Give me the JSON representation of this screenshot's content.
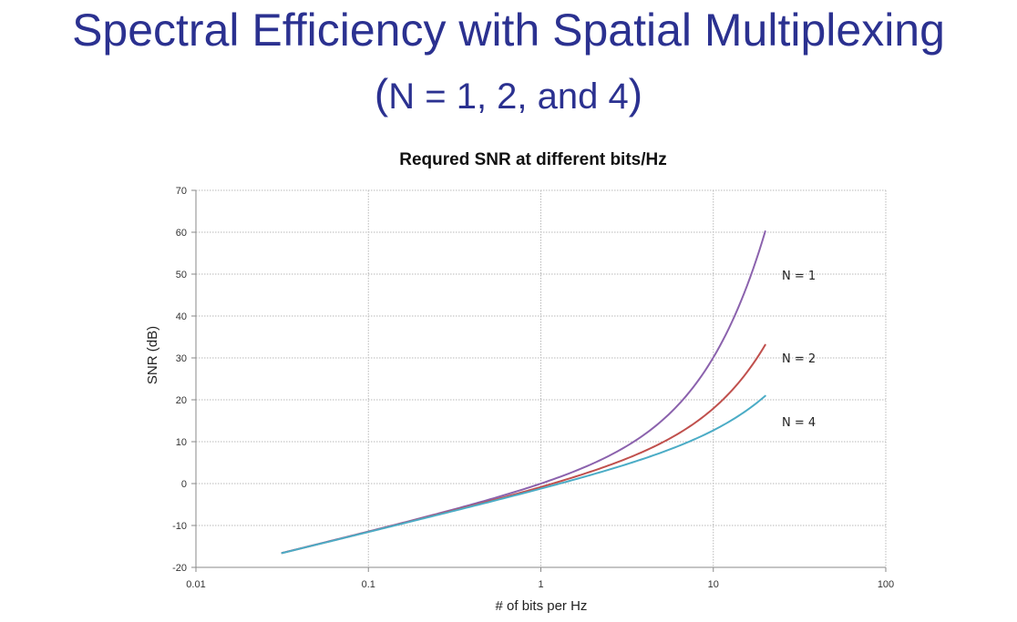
{
  "slide": {
    "title": "Spectral Efficiency with Spatial Multiplexing",
    "subtitle_open": "(",
    "subtitle_body": "N = 1, 2, and 4",
    "subtitle_close": ")"
  },
  "chart_data": {
    "type": "line",
    "title": "Requred SNR at different bits/Hz",
    "xlabel": "# of bits per Hz",
    "ylabel": "SNR (dB)",
    "xscale": "log",
    "xlim": [
      0.01,
      100
    ],
    "ylim": [
      -20,
      70
    ],
    "xticks": [
      0.01,
      0.1,
      1,
      10,
      100
    ],
    "xtick_labels": [
      "0.01",
      "0.1",
      "1",
      "10",
      "100"
    ],
    "yticks": [
      -20,
      -10,
      0,
      10,
      20,
      30,
      40,
      50,
      60,
      70
    ],
    "ytick_labels": [
      "-20",
      "-10",
      "0",
      "10",
      "20",
      "30",
      "40",
      "50",
      "60",
      "70"
    ],
    "grid": true,
    "legend": "inline labels at right end of each curve",
    "x_range": [
      0.0316,
      20
    ],
    "series": [
      {
        "name": "N = 1",
        "N": 1,
        "color": "#8b62ad",
        "points": [
          [
            0.0316,
            -16.4
          ],
          [
            0.1,
            -11.5
          ],
          [
            0.3,
            -6.2
          ],
          [
            0.5,
            -3.6
          ],
          [
            1,
            0.0
          ],
          [
            2,
            4.8
          ],
          [
            3,
            8.5
          ],
          [
            5,
            15.0
          ],
          [
            7,
            21.0
          ],
          [
            10,
            30.1
          ],
          [
            15,
            45.0
          ],
          [
            20,
            60.2
          ]
        ]
      },
      {
        "name": "N = 2",
        "N": 2,
        "color": "#c0504d",
        "points": [
          [
            0.0316,
            -16.4
          ],
          [
            0.1,
            -11.5
          ],
          [
            0.3,
            -6.3
          ],
          [
            0.5,
            -3.9
          ],
          [
            1,
            -0.7
          ],
          [
            2,
            3.0
          ],
          [
            3,
            5.3
          ],
          [
            5,
            8.8
          ],
          [
            7,
            11.8
          ],
          [
            10,
            17.0
          ],
          [
            15,
            24.5
          ],
          [
            20,
            33.1
          ]
        ]
      },
      {
        "name": "N = 4",
        "N": 4,
        "color": "#4bacc6",
        "points": [
          [
            0.0316,
            -16.4
          ],
          [
            0.1,
            -11.5
          ],
          [
            0.3,
            -6.3
          ],
          [
            0.5,
            -4.1
          ],
          [
            1,
            -1.2
          ],
          [
            2,
            2.2
          ],
          [
            3,
            4.0
          ],
          [
            5,
            6.6
          ],
          [
            7,
            8.8
          ],
          [
            10,
            12.6
          ],
          [
            15,
            17.0
          ],
          [
            20,
            21.0
          ]
        ]
      }
    ]
  }
}
